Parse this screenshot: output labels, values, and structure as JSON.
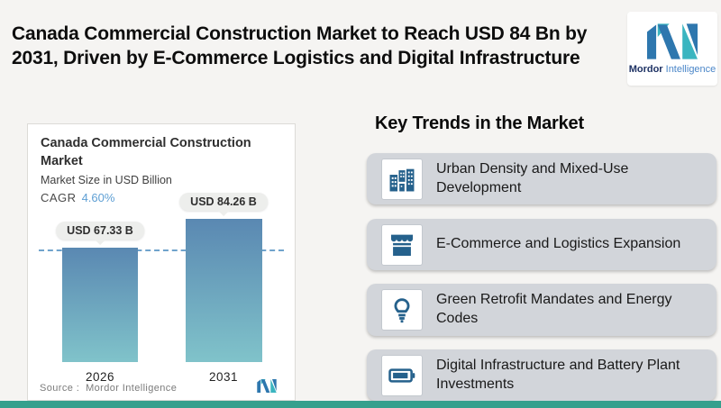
{
  "header": {
    "title_lines": [
      "Canada Commercial Construction Market to Reach USD 84 Bn by",
      "2031, Driven by E-Commerce Logistics and Digital Infrastructure"
    ]
  },
  "logo": {
    "name_bold": "Mordor",
    "name_light": " Intelligence",
    "brand_blue": "#2e77ae",
    "brand_teal": "#3ab5c0"
  },
  "chart_card": {
    "title": "Canada Commercial Construction Market",
    "subtitle": "Market Size in USD Billion",
    "cagr_label": "CAGR",
    "cagr_value": "4.60%",
    "source": "Source :  Mordor Intelligence"
  },
  "chart_data": {
    "type": "bar",
    "title": "Canada Commercial Construction Market",
    "subtitle": "Market Size in USD Billion",
    "cagr": "4.60%",
    "categories": [
      "2026",
      "2031"
    ],
    "values": [
      67.33,
      84.26
    ],
    "value_labels": [
      "USD 67.33 B",
      "USD 84.26 B"
    ],
    "ylim": [
      0,
      90
    ],
    "grid": false,
    "bar_gradient_top": "#5a88b2",
    "bar_gradient_bottom": "#80c3ca",
    "reference_line_value": 67.33,
    "reference_line_style": "dashed",
    "reference_line_color": "#6fa3cc"
  },
  "trends": {
    "heading": "Key Trends in the Market",
    "items": [
      {
        "icon": "buildings-icon",
        "label": "Urban Density and Mixed-Use Development"
      },
      {
        "icon": "storefront-icon",
        "label": "E-Commerce and Logistics Expansion"
      },
      {
        "icon": "lightbulb-icon",
        "label": "Green Retrofit Mandates and Energy Codes"
      },
      {
        "icon": "battery-icon",
        "label": "Digital Infrastructure and Battery Plant Investments"
      }
    ]
  },
  "footer": {
    "accent_color": "#35a08d"
  }
}
